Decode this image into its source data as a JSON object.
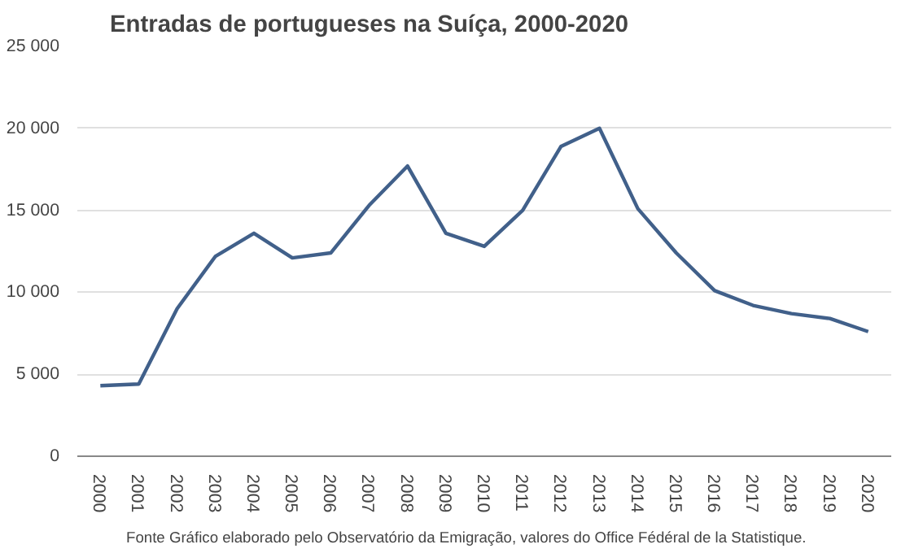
{
  "chart_data": {
    "type": "line",
    "title": "Entradas  de portugueses  na Suíça, 2000-2020",
    "categories": [
      "2000",
      "2001",
      "2002",
      "2003",
      "2004",
      "2005",
      "2006",
      "2007",
      "2008",
      "2009",
      "2010",
      "2011",
      "2012",
      "2013",
      "2014",
      "2015",
      "2016",
      "2017",
      "2018",
      "2019",
      "2020"
    ],
    "series": [
      {
        "color": "#41608a",
        "values": [
          4300,
          4400,
          9000,
          12200,
          13600,
          12100,
          12400,
          15300,
          17700,
          13600,
          12800,
          15000,
          18900,
          20000,
          15100,
          12400,
          10100,
          9200,
          8700,
          8400,
          7600
        ]
      }
    ],
    "ylim": [
      0,
      25000
    ],
    "yticks": [
      0,
      {
        "value": 5000,
        "label": "5 000"
      },
      {
        "value": 10000,
        "label": "10 000"
      },
      {
        "value": 15000,
        "label": "15 000"
      },
      {
        "value": 20000,
        "label": "20 000"
      },
      {
        "value": 25000,
        "label": "25 000"
      }
    ],
    "grid": "y",
    "marker": "none",
    "line_style": "solid",
    "annotations": [
      "Fonte  Gráfico elaborado pelo  Observatório da Emigração, valores do Office Fédéral de la Statistique."
    ]
  }
}
